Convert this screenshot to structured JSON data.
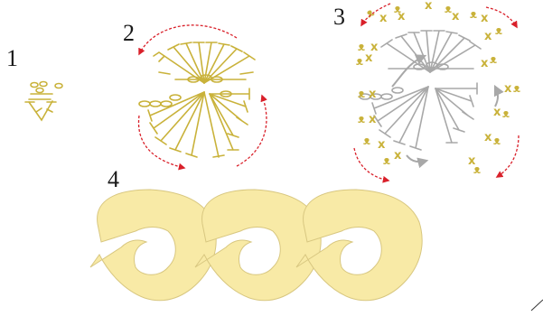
{
  "steps": [
    {
      "label": "1"
    },
    {
      "label": "2"
    },
    {
      "label": "3"
    },
    {
      "label": "4"
    }
  ],
  "colors": {
    "yarn": "#c9b23a",
    "previous_round": "#a8a8a8",
    "direction_arrow": "#d9202a",
    "motif_fill": "#f8eaa6"
  },
  "legend_symbols": {
    "single_crochet": "x",
    "increase": "ᴥ"
  }
}
